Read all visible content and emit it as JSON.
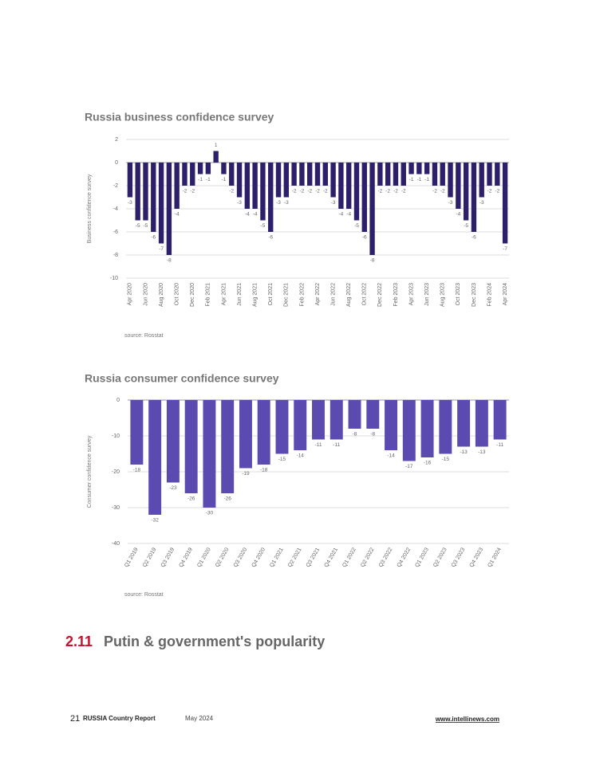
{
  "chart_data": [
    {
      "type": "bar",
      "title": "Russia business confidence survey",
      "y_label": "Business confidence survey",
      "source": "source: Rosstat",
      "color": "#2e1f6b",
      "categories": [
        "Apr 2020",
        null,
        "Jun 2020",
        null,
        "Aug 2020",
        null,
        "Oct 2020",
        null,
        "Dec 2020",
        null,
        "Feb 2021",
        null,
        "Apr 2021",
        null,
        "Jun 2021",
        null,
        "Aug 2021",
        null,
        "Oct 2021",
        null,
        "Dec 2021",
        null,
        "Feb 2022",
        null,
        "Apr 2022",
        null,
        "Jun 2022",
        null,
        "Aug 2022",
        null,
        "Oct 2022",
        null,
        "Dec 2022",
        null,
        "Feb 2023",
        null,
        "Apr 2023",
        null,
        "Jun 2023",
        null,
        "Aug 2023",
        null,
        "Oct 2023",
        null,
        "Dec 2023",
        null,
        "Feb 2024",
        null,
        "Apr 2024"
      ],
      "values": [
        -3,
        -5,
        -5,
        -6,
        -7,
        -8,
        -4,
        -2,
        -2,
        -1,
        -1,
        1,
        -1,
        -2,
        -3,
        -4,
        -4,
        -5,
        -6,
        -3,
        -3,
        -2,
        -2,
        -2,
        -2,
        -2,
        -3,
        -4,
        -4,
        -5,
        -6,
        -8,
        -2,
        -2,
        -2,
        -2,
        -1,
        -1,
        -1,
        -2,
        -2,
        -3,
        -4,
        -5,
        -6,
        -3,
        -2,
        -2,
        -7
      ],
      "ylim": [
        -10,
        2
      ],
      "yticks": [
        -10,
        -8,
        -6,
        -4,
        -2,
        0,
        2
      ],
      "grid": true
    },
    {
      "type": "bar",
      "title": "Russia consumer confidence survey",
      "y_label": "Consumer confidence survey",
      "source": "source: Rosstat",
      "color": "#5b4bb0",
      "categories": [
        "Q1 2019",
        "Q2 2019",
        "Q3 2019",
        "Q4 2019",
        "Q1 2020",
        "Q2 2020",
        "Q3 2020",
        "Q4 2020",
        "Q1 2021",
        "Q2 2021",
        "Q3 2021",
        "Q4 2021",
        "Q1 2022",
        "Q2 2022",
        "Q3 2022",
        "Q4 2022",
        "Q1 2023",
        "Q2 2023",
        "Q3 2023",
        "Q4 2023",
        "Q1 2024"
      ],
      "values": [
        -18,
        -32,
        -23,
        -26,
        -30,
        -26,
        -19,
        -18,
        -15,
        -14,
        -11,
        -11,
        -8,
        -8,
        -14,
        -17,
        -16,
        -15,
        -13,
        -13,
        -11
      ],
      "ylim": [
        -40,
        0
      ],
      "yticks": [
        -40,
        -30,
        -20,
        -10,
        0
      ],
      "grid": true
    }
  ],
  "section": {
    "number": "2.11",
    "title": "Putin & government's popularity"
  },
  "footer": {
    "page": "21",
    "report": "RUSSIA Country Report",
    "date": "May 2024",
    "url": "www.intellinews.com"
  }
}
